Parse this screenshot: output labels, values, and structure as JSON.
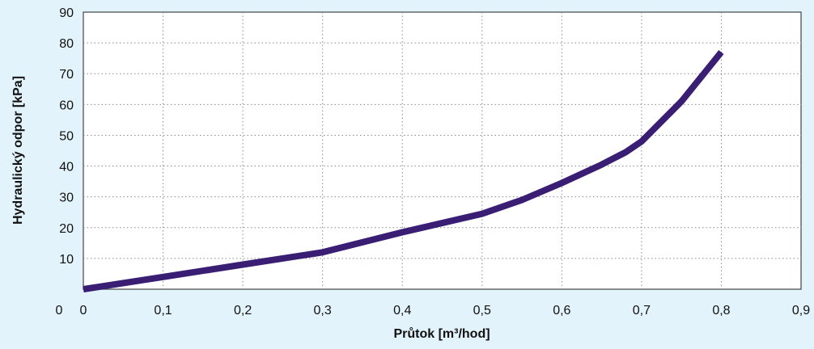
{
  "chart_data": {
    "type": "line",
    "title": "",
    "xlabel": "Průtok [m³/hod]",
    "ylabel": "Hydraulický odpor [kPa]",
    "xlim": [
      0,
      0.9
    ],
    "ylim": [
      0,
      90
    ],
    "x_ticks": [
      "0",
      "0,1",
      "0,2",
      "0,3",
      "0,4",
      "0,5",
      "0,6",
      "0,7",
      "0,8",
      "0,9"
    ],
    "y_ticks": [
      "10",
      "20",
      "30",
      "40",
      "50",
      "60",
      "70",
      "80",
      "90"
    ],
    "grid": true,
    "legend": "none",
    "series": [
      {
        "color": "#3a1e73",
        "x": [
          0,
          0.1,
          0.2,
          0.3,
          0.4,
          0.5,
          0.55,
          0.6,
          0.65,
          0.68,
          0.7,
          0.75,
          0.8
        ],
        "y": [
          0,
          4,
          8,
          12,
          18.5,
          24.5,
          29,
          34.5,
          40.5,
          44.5,
          48,
          61,
          77
        ]
      }
    ]
  }
}
